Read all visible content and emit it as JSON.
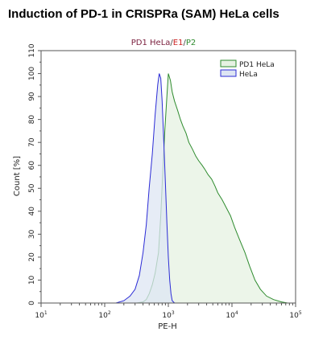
{
  "page_title": "Induction of PD-1 in CRISPRa (SAM) HeLa cells",
  "chart_data": {
    "type": "area",
    "subtitle": {
      "parts": [
        {
          "text": "PD1 HeLa",
          "color": "#7a1f3d"
        },
        {
          "text": "/",
          "color": "#444444"
        },
        {
          "text": "E1",
          "color": "#cc2222"
        },
        {
          "text": "/",
          "color": "#444444"
        },
        {
          "text": "P2",
          "color": "#2e8b2e"
        }
      ]
    },
    "xlabel": "PE-H",
    "ylabel": "Count [%]",
    "x_scale": "log",
    "xlim": [
      10,
      100000
    ],
    "ylim": [
      0,
      110
    ],
    "x_ticks": [
      {
        "value": 10,
        "base": "10",
        "exp": "1"
      },
      {
        "value": 100,
        "base": "10",
        "exp": "2"
      },
      {
        "value": 1000,
        "base": "10",
        "exp": "3"
      },
      {
        "value": 10000,
        "base": "10",
        "exp": "4"
      },
      {
        "value": 100000,
        "base": "10",
        "exp": "5"
      }
    ],
    "y_ticks": [
      0,
      10,
      20,
      30,
      40,
      50,
      60,
      70,
      80,
      90,
      100,
      110
    ],
    "y_tick_labels": [
      "0",
      "10",
      "20",
      "30",
      "40",
      "50",
      "60",
      "70",
      "80",
      "90",
      "100",
      "110"
    ],
    "legend_position": "top-right",
    "series": [
      {
        "name": "PD1 HeLa",
        "stroke": "#2e8b2e",
        "fill": "#e6f2e2",
        "x": [
          316,
          400,
          450,
          500,
          560,
          620,
          700,
          760,
          820,
          880,
          950,
          1000,
          1080,
          1150,
          1250,
          1400,
          1550,
          1700,
          1900,
          2100,
          2400,
          2700,
          3000,
          3400,
          3800,
          4200,
          4800,
          5400,
          6000,
          7000,
          8000,
          9500,
          11000,
          13000,
          16000,
          19000,
          23000,
          28000,
          35000,
          45000,
          60000,
          75000
        ],
        "y": [
          0,
          0.5,
          1.5,
          4,
          8,
          13,
          22,
          38,
          58,
          75,
          90,
          100,
          97,
          92,
          88,
          84,
          80,
          77,
          74,
          70,
          67,
          64,
          62,
          60,
          58,
          56,
          54,
          51,
          48,
          45,
          42,
          38,
          33,
          28,
          22,
          16,
          10,
          6,
          3,
          1.5,
          0.5,
          0
        ]
      },
      {
        "name": "HeLa",
        "stroke": "#2b2bd6",
        "fill": "#dde5f3",
        "x": [
          150,
          200,
          250,
          300,
          350,
          400,
          450,
          500,
          560,
          620,
          680,
          720,
          760,
          800,
          850,
          900,
          950,
          1000,
          1050,
          1100,
          1150,
          1250
        ],
        "y": [
          0,
          1,
          3,
          6,
          12,
          22,
          34,
          50,
          65,
          82,
          95,
          100,
          98,
          88,
          70,
          52,
          35,
          20,
          10,
          4,
          1,
          0
        ]
      }
    ]
  }
}
